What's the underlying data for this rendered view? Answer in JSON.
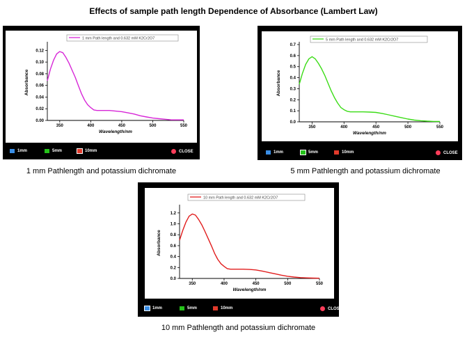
{
  "page": {
    "title": "Effects of sample path length Dependence of Absorbance (Lambert Law)"
  },
  "chart_data": [
    {
      "type": "line",
      "legend": "1 mm Path length and 0.632 mM K2Cr2O7",
      "xlabel": "Wavelength/nm",
      "ylabel": "Absorbance",
      "xlim": [
        330,
        550
      ],
      "ylim": [
        0,
        0.13
      ],
      "xticks": [
        "350",
        "400",
        "450",
        "500",
        "550"
      ],
      "yticks": [
        "0.00",
        "0.02",
        "0.04",
        "0.06",
        "0.08",
        "0.10",
        "0.12"
      ],
      "color": "#d726d7",
      "grid": false,
      "x": [
        330,
        335,
        340,
        345,
        350,
        355,
        360,
        365,
        370,
        375,
        380,
        385,
        390,
        395,
        400,
        405,
        410,
        420,
        430,
        440,
        450,
        460,
        470,
        480,
        490,
        500,
        510,
        520,
        530,
        540,
        550
      ],
      "y": [
        0.068,
        0.088,
        0.103,
        0.114,
        0.118,
        0.116,
        0.108,
        0.098,
        0.086,
        0.074,
        0.06,
        0.046,
        0.035,
        0.027,
        0.022,
        0.018,
        0.017,
        0.017,
        0.017,
        0.016,
        0.015,
        0.013,
        0.011,
        0.008,
        0.006,
        0.004,
        0.003,
        0.002,
        0.001,
        0.001,
        0.001
      ],
      "caption": "1 mm Pathlength and potassium dichromate",
      "controls": {
        "b1": "1mm",
        "b2": "5mm",
        "b3": "10mm",
        "close": "CLOSE"
      }
    },
    {
      "type": "line",
      "legend": "5 mm Path length and 0.632 mM K2Cr2O7",
      "xlabel": "Wavelength/nm",
      "ylabel": "Absorbance",
      "xlim": [
        330,
        550
      ],
      "ylim": [
        0,
        0.7
      ],
      "xticks": [
        "350",
        "400",
        "450",
        "500",
        "550"
      ],
      "yticks": [
        "0.0",
        "0.1",
        "0.2",
        "0.3",
        "0.4",
        "0.5",
        "0.6",
        "0.7"
      ],
      "color": "#3bdc16",
      "grid": false,
      "x": [
        330,
        335,
        340,
        345,
        350,
        355,
        360,
        365,
        370,
        375,
        380,
        385,
        390,
        395,
        400,
        405,
        410,
        420,
        430,
        440,
        450,
        460,
        470,
        480,
        490,
        500,
        510,
        520,
        530,
        540,
        550
      ],
      "y": [
        0.34,
        0.44,
        0.52,
        0.57,
        0.59,
        0.57,
        0.53,
        0.48,
        0.42,
        0.35,
        0.28,
        0.22,
        0.17,
        0.13,
        0.11,
        0.095,
        0.09,
        0.09,
        0.09,
        0.088,
        0.085,
        0.075,
        0.063,
        0.05,
        0.037,
        0.025,
        0.016,
        0.01,
        0.006,
        0.004,
        0.003
      ],
      "caption": "5 mm Pathlength and potassium dichromate",
      "controls": {
        "b1": "1mm",
        "b2": "5mm",
        "b3": "10mm",
        "close": "CLOSE"
      }
    },
    {
      "type": "line",
      "legend": "10 mm Path length and 0.632 mM K2Cr2O7",
      "xlabel": "Wavelength/nm",
      "ylabel": "Absorbance",
      "xlim": [
        330,
        550
      ],
      "ylim": [
        0,
        1.3
      ],
      "xticks": [
        "350",
        "400",
        "450",
        "500",
        "550"
      ],
      "yticks": [
        "0.0",
        "0.2",
        "0.4",
        "0.6",
        "0.8",
        "1.0",
        "1.2"
      ],
      "color": "#e11d1d",
      "grid": false,
      "x": [
        330,
        335,
        340,
        345,
        350,
        355,
        360,
        365,
        370,
        375,
        380,
        385,
        390,
        395,
        400,
        405,
        410,
        420,
        430,
        440,
        450,
        460,
        470,
        480,
        490,
        500,
        510,
        520,
        530,
        540,
        550
      ],
      "y": [
        0.7,
        0.88,
        1.03,
        1.14,
        1.18,
        1.16,
        1.08,
        0.98,
        0.86,
        0.73,
        0.6,
        0.46,
        0.35,
        0.27,
        0.22,
        0.18,
        0.17,
        0.17,
        0.17,
        0.165,
        0.155,
        0.135,
        0.11,
        0.085,
        0.06,
        0.04,
        0.025,
        0.015,
        0.01,
        0.006,
        0.004
      ],
      "caption": "10 mm Pathlength and potassium dichromate",
      "controls": {
        "b1": "1mm",
        "b2": "5mm",
        "b3": "10mm",
        "close": "CLOSE"
      }
    }
  ],
  "colors": {
    "panel_bg": "#000000",
    "plot_bg": "#ffffff",
    "btn_1mm": "#3a8ee6",
    "btn_5mm": "#25c21a",
    "btn_10mm": "#e23a2b",
    "btn_close": "#ff3d5a"
  }
}
